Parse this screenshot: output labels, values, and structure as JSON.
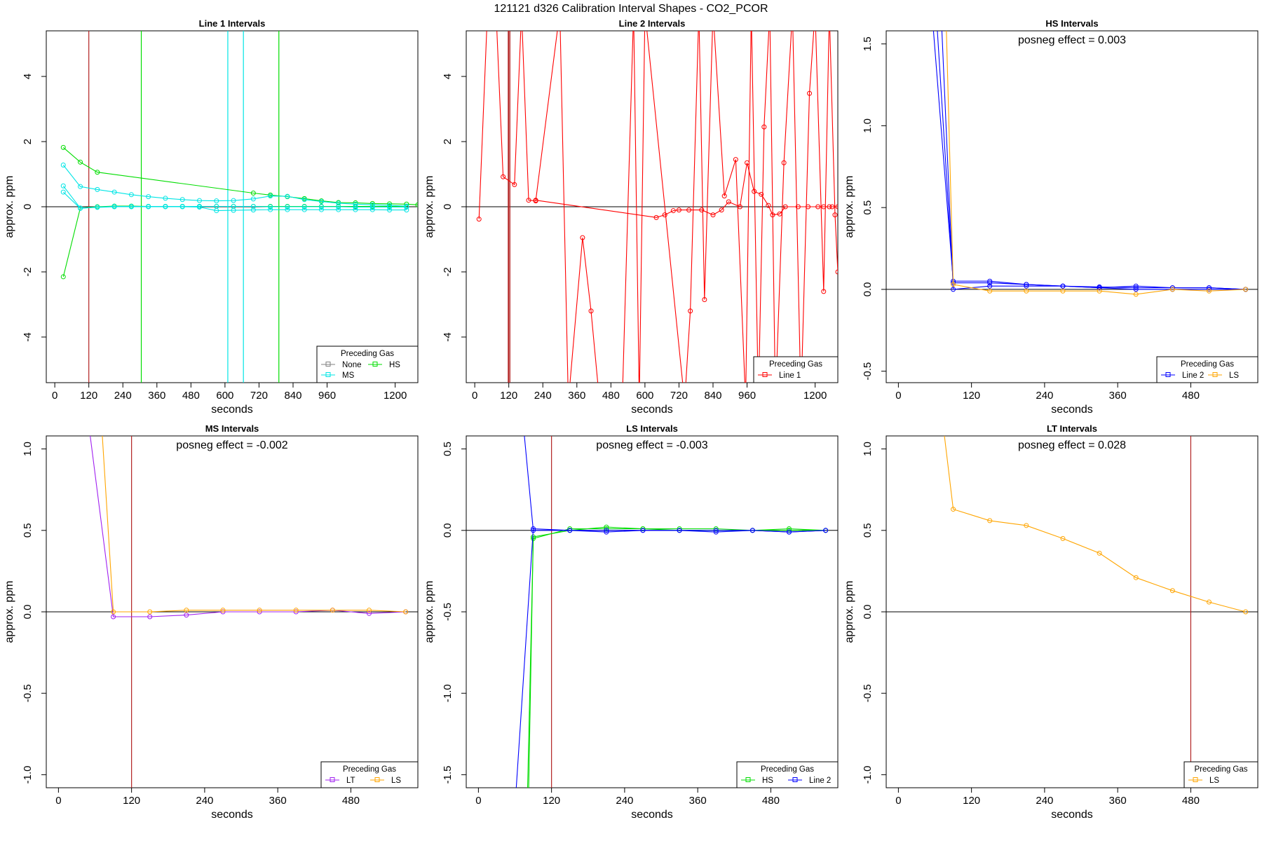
{
  "title": "121121  d326   Calibration Interval Shapes - CO2_PCOR",
  "colors": {
    "None": "#808080",
    "HS": "#00dd00",
    "MS": "#00e5e5",
    "LT": "#a020f0",
    "LS": "#ffa500",
    "Line 1": "#ff0000",
    "Line 2": "#0000ff",
    "vline": "#b22222",
    "zero": "#000000"
  },
  "chart_data": [
    {
      "type": "line",
      "title": "Line 1 Intervals",
      "xlabel": "seconds",
      "ylabel": "approx. ppm",
      "xlim": [
        -30,
        1280
      ],
      "ylim": [
        -5.4,
        5.4
      ],
      "xticks": [
        0,
        120,
        240,
        360,
        480,
        600,
        720,
        840,
        960,
        1200
      ],
      "yticks": [
        -4,
        -2,
        0,
        2,
        4
      ],
      "annotation": "",
      "vlines": [
        {
          "x": 120,
          "color": "vline"
        },
        {
          "x": 305,
          "color": "HS"
        },
        {
          "x": 790,
          "color": "HS"
        },
        {
          "x": 610,
          "color": "MS"
        },
        {
          "x": 665,
          "color": "MS"
        }
      ],
      "legend_title": "Preceding Gas",
      "legend_position": "bottom-right",
      "legend": [
        "None",
        "HS",
        "MS"
      ],
      "legend_cols": 2,
      "series": [
        {
          "name": "HS",
          "color": "HS",
          "x": [
            30,
            90,
            150,
            700,
            760,
            820,
            880,
            940,
            1000,
            1060,
            1120,
            1180,
            1240,
            1280
          ],
          "y": [
            1.82,
            1.37,
            1.06,
            0.42,
            0.36,
            0.31,
            0.25,
            0.18,
            0.13,
            0.12,
            0.1,
            0.09,
            0.08,
            0.06
          ]
        },
        {
          "name": "HS",
          "color": "HS",
          "x": [
            30,
            90,
            150,
            210,
            270,
            330,
            390,
            450,
            510,
            570,
            630,
            700,
            760,
            820,
            880,
            940,
            1000,
            1060,
            1120,
            1180,
            1240
          ],
          "y": [
            -2.15,
            -0.04,
            0.0,
            0.02,
            0.02,
            0.01,
            0.01,
            0.01,
            0.01,
            0.01,
            0.01,
            0.01,
            0.01,
            0.01,
            0.01,
            0.01,
            0.01,
            0.01,
            0.01,
            0.01,
            0.01
          ]
        },
        {
          "name": "MS",
          "color": "MS",
          "x": [
            30,
            90,
            150,
            210,
            270,
            330,
            390,
            450,
            510,
            570,
            630,
            700,
            760,
            820,
            880,
            940,
            1000,
            1060,
            1120,
            1180,
            1240
          ],
          "y": [
            1.28,
            0.62,
            0.53,
            0.45,
            0.37,
            0.31,
            0.26,
            0.22,
            0.19,
            0.18,
            0.19,
            0.24,
            0.33,
            0.32,
            0.22,
            0.16,
            0.11,
            0.08,
            0.06,
            0.04,
            0.02
          ]
        },
        {
          "name": "MS",
          "color": "MS",
          "x": [
            30,
            90,
            150,
            210,
            270,
            330,
            390,
            450,
            510,
            570,
            630,
            700,
            760,
            820,
            880,
            940,
            1000,
            1060,
            1120,
            1180,
            1240
          ],
          "y": [
            0.64,
            -0.04,
            -0.02,
            0.0,
            0.0,
            0.0,
            0.0,
            0.0,
            -0.01,
            -0.12,
            -0.11,
            -0.1,
            -0.09,
            -0.09,
            -0.09,
            -0.09,
            -0.09,
            -0.09,
            -0.09,
            -0.1,
            -0.1
          ]
        },
        {
          "name": "MS",
          "color": "MS",
          "x": [
            30,
            90,
            150,
            210,
            270,
            330,
            390,
            450,
            510,
            570,
            630,
            700,
            760,
            820,
            880,
            940,
            1000,
            1060,
            1120,
            1180,
            1240
          ],
          "y": [
            0.45,
            -0.05,
            -0.01,
            0.01,
            0.01,
            0.01,
            0.01,
            0.01,
            0.01,
            0.01,
            0.01,
            0.01,
            0.0,
            0.0,
            0.0,
            0.0,
            0.0,
            -0.01,
            -0.01,
            -0.01,
            -0.01
          ]
        }
      ]
    },
    {
      "type": "line",
      "title": "Line 2 Intervals",
      "xlabel": "seconds",
      "ylabel": "approx. ppm",
      "xlim": [
        -30,
        1280
      ],
      "ylim": [
        -5.4,
        5.4
      ],
      "xticks": [
        0,
        120,
        240,
        360,
        480,
        600,
        720,
        840,
        960,
        1200
      ],
      "yticks": [
        -4,
        -2,
        0,
        2,
        4
      ],
      "annotation": "",
      "vlines": [
        {
          "x": 120,
          "color": "vline"
        },
        {
          "x": 124,
          "color": "vline"
        },
        {
          "x": 118,
          "color": "vline"
        }
      ],
      "legend_title": "Preceding Gas",
      "legend_position": "bottom-right",
      "legend": [
        "Line 1"
      ],
      "legend_cols": 1,
      "series": [
        {
          "name": "Line 1",
          "color": "Line 1",
          "x": [
            15,
            45,
            75,
            100,
            140,
            165,
            190,
            215,
            300,
            330,
            380,
            410,
            440,
            475
          ],
          "y": [
            -0.38,
            6.0,
            6.0,
            0.92,
            0.68,
            6.0,
            0.2,
            0.18,
            6.0,
            -6.0,
            -0.95,
            -3.2,
            -6.0,
            -6.0
          ]
        },
        {
          "name": "Line 1",
          "color": "Line 1",
          "x": [
            215,
            640,
            670,
            700,
            720,
            755,
            800,
            840,
            870,
            895,
            935,
            960,
            985,
            1010,
            1035,
            1050,
            1075,
            1095,
            1140,
            1175,
            1210,
            1230,
            1250,
            1260,
            1280
          ],
          "y": [
            0.2,
            -0.33,
            -0.25,
            -0.12,
            -0.1,
            -0.1,
            -0.1,
            -0.25,
            -0.1,
            0.15,
            0.0,
            1.35,
            0.47,
            0.38,
            0.04,
            -0.25,
            -0.22,
            0.0,
            0.0,
            0.0,
            0.0,
            0.0,
            0.0,
            0.0,
            0.0
          ]
        },
        {
          "name": "Line 1",
          "color": "Line 1",
          "x": [
            520,
            560,
            580,
            600,
            740,
            760,
            790,
            810,
            840,
            880,
            920,
            955,
            975,
            1000,
            1020,
            1040,
            1060,
            1090,
            1120,
            1150,
            1180,
            1200,
            1230,
            1250,
            1270,
            1280
          ],
          "y": [
            -6.0,
            6.0,
            -6.0,
            6.0,
            -6.0,
            -3.2,
            6.0,
            -2.85,
            6.0,
            0.33,
            1.45,
            -6.0,
            6.0,
            -6.0,
            2.45,
            6.0,
            -6.0,
            1.35,
            6.0,
            -6.0,
            3.48,
            6.0,
            -2.6,
            6.0,
            -0.25,
            -2.0
          ]
        }
      ]
    },
    {
      "type": "line",
      "title": "HS Intervals",
      "xlabel": "seconds",
      "ylabel": "approx. ppm",
      "xlim": [
        -20,
        590
      ],
      "ylim": [
        -0.57,
        1.58
      ],
      "xticks": [
        0,
        120,
        240,
        360,
        480
      ],
      "yticks": [
        -0.5,
        0.0,
        0.5,
        1.0,
        1.5
      ],
      "annotation": "posneg effect = 0.003",
      "vlines": [],
      "legend_title": "Preceding Gas",
      "legend_position": "bottom-right",
      "legend": [
        "Line 2",
        "LS"
      ],
      "legend_cols": 2,
      "series": [
        {
          "name": "Line 2",
          "color": "Line 2",
          "x": [
            55,
            90,
            150,
            210,
            270,
            330,
            390,
            450,
            510,
            570
          ],
          "y": [
            1.7,
            0.05,
            0.05,
            0.03,
            0.02,
            0.015,
            0.01,
            0.01,
            0.01,
            0.0
          ]
        },
        {
          "name": "Line 2",
          "color": "Line 2",
          "x": [
            62,
            90,
            150,
            210,
            270,
            330,
            390,
            450,
            510,
            570
          ],
          "y": [
            1.7,
            0.04,
            0.04,
            0.03,
            0.02,
            0.01,
            0.02,
            0.01,
            0.01,
            0.0
          ]
        },
        {
          "name": "Line 2",
          "color": "Line 2",
          "x": [
            70,
            90,
            150,
            210,
            270,
            330,
            390,
            450,
            510,
            570
          ],
          "y": [
            1.7,
            0.0,
            0.02,
            0.02,
            0.02,
            0.01,
            0.0,
            0.0,
            0.0,
            0.0
          ]
        },
        {
          "name": "LS",
          "color": "LS",
          "x": [
            78,
            90,
            150,
            210,
            270,
            330,
            390,
            450,
            510,
            570
          ],
          "y": [
            1.7,
            0.03,
            -0.01,
            -0.01,
            -0.01,
            -0.01,
            -0.03,
            0.0,
            -0.01,
            0.0
          ]
        }
      ]
    },
    {
      "type": "line",
      "title": "MS Intervals",
      "xlabel": "seconds",
      "ylabel": "approx. ppm",
      "xlim": [
        -20,
        590
      ],
      "ylim": [
        -1.08,
        1.08
      ],
      "xticks": [
        0,
        120,
        240,
        360,
        480
      ],
      "yticks": [
        -1.0,
        -0.5,
        0.0,
        0.5,
        1.0
      ],
      "annotation": "posneg effect = -0.002",
      "vlines": [
        {
          "x": 120,
          "color": "vline"
        }
      ],
      "legend_title": "Preceding Gas",
      "legend_position": "bottom-right",
      "legend": [
        "LT",
        "LS"
      ],
      "legend_cols": 2,
      "series": [
        {
          "name": "LT",
          "color": "LT",
          "x": [
            48,
            90,
            150,
            210,
            270,
            330,
            390,
            450,
            510,
            570
          ],
          "y": [
            1.2,
            -0.03,
            -0.03,
            -0.02,
            0.0,
            0.0,
            0.0,
            0.01,
            -0.01,
            0.0
          ]
        },
        {
          "name": "LS",
          "color": "LS",
          "x": [
            70,
            90,
            150,
            210,
            270,
            330,
            390,
            450,
            510,
            570
          ],
          "y": [
            1.2,
            0.0,
            0.0,
            0.01,
            0.01,
            0.01,
            0.01,
            0.01,
            0.01,
            0.0
          ]
        }
      ]
    },
    {
      "type": "line",
      "title": "LS Intervals",
      "xlabel": "seconds",
      "ylabel": "approx. ppm",
      "xlim": [
        -20,
        590
      ],
      "ylim": [
        -1.58,
        0.58
      ],
      "xticks": [
        0,
        120,
        240,
        360,
        480
      ],
      "yticks": [
        -1.5,
        -1.0,
        -0.5,
        0.0,
        0.5
      ],
      "annotation": "posneg effect = -0.003",
      "vlines": [
        {
          "x": 120,
          "color": "vline"
        }
      ],
      "legend_title": "Preceding Gas",
      "legend_position": "bottom-right",
      "legend": [
        "HS",
        "Line 2"
      ],
      "legend_cols": 2,
      "series": [
        {
          "name": "HS",
          "color": "HS",
          "x": [
            80,
            90,
            150,
            210,
            270,
            330,
            390,
            450,
            510,
            570
          ],
          "y": [
            -1.7,
            -0.05,
            0.01,
            0.01,
            0.01,
            0.0,
            0.0,
            0.0,
            0.0,
            0.0
          ]
        },
        {
          "name": "HS",
          "color": "HS",
          "x": [
            82,
            90,
            150,
            210,
            270,
            330,
            390,
            450,
            510,
            570
          ],
          "y": [
            -1.7,
            -0.04,
            0.0,
            0.02,
            0.01,
            0.01,
            0.01,
            0.0,
            0.01,
            0.0
          ]
        },
        {
          "name": "Line 2",
          "color": "Line 2",
          "x": [
            60,
            90,
            150,
            210,
            270,
            330,
            390,
            450,
            510,
            570
          ],
          "y": [
            -1.7,
            0.01,
            0.0,
            -0.01,
            0.0,
            0.0,
            0.0,
            0.0,
            -0.01,
            0.0
          ]
        },
        {
          "name": "Line 2",
          "color": "Line 2",
          "x": [
            75,
            90,
            150,
            210,
            270,
            330,
            390,
            450,
            510,
            570
          ],
          "y": [
            0.6,
            0.0,
            0.0,
            0.0,
            0.0,
            0.0,
            -0.01,
            0.0,
            -0.01,
            0.0
          ]
        }
      ]
    },
    {
      "type": "line",
      "title": "LT Intervals",
      "xlabel": "seconds",
      "ylabel": "approx. ppm",
      "xlim": [
        -20,
        590
      ],
      "ylim": [
        -1.08,
        1.08
      ],
      "xticks": [
        0,
        120,
        240,
        360,
        480
      ],
      "yticks": [
        -1.0,
        -0.5,
        0.0,
        0.5,
        1.0
      ],
      "annotation": "posneg effect = 0.028",
      "vlines": [
        {
          "x": 480,
          "color": "vline"
        }
      ],
      "legend_title": "Preceding Gas",
      "legend_position": "bottom-right",
      "legend": [
        "LS"
      ],
      "legend_cols": 1,
      "series": [
        {
          "name": "LS",
          "color": "LS",
          "x": [
            75,
            90,
            150,
            210,
            270,
            330,
            390,
            450,
            510,
            570
          ],
          "y": [
            1.1,
            0.63,
            0.56,
            0.53,
            0.45,
            0.36,
            0.21,
            0.13,
            0.06,
            0.0
          ]
        }
      ]
    }
  ]
}
